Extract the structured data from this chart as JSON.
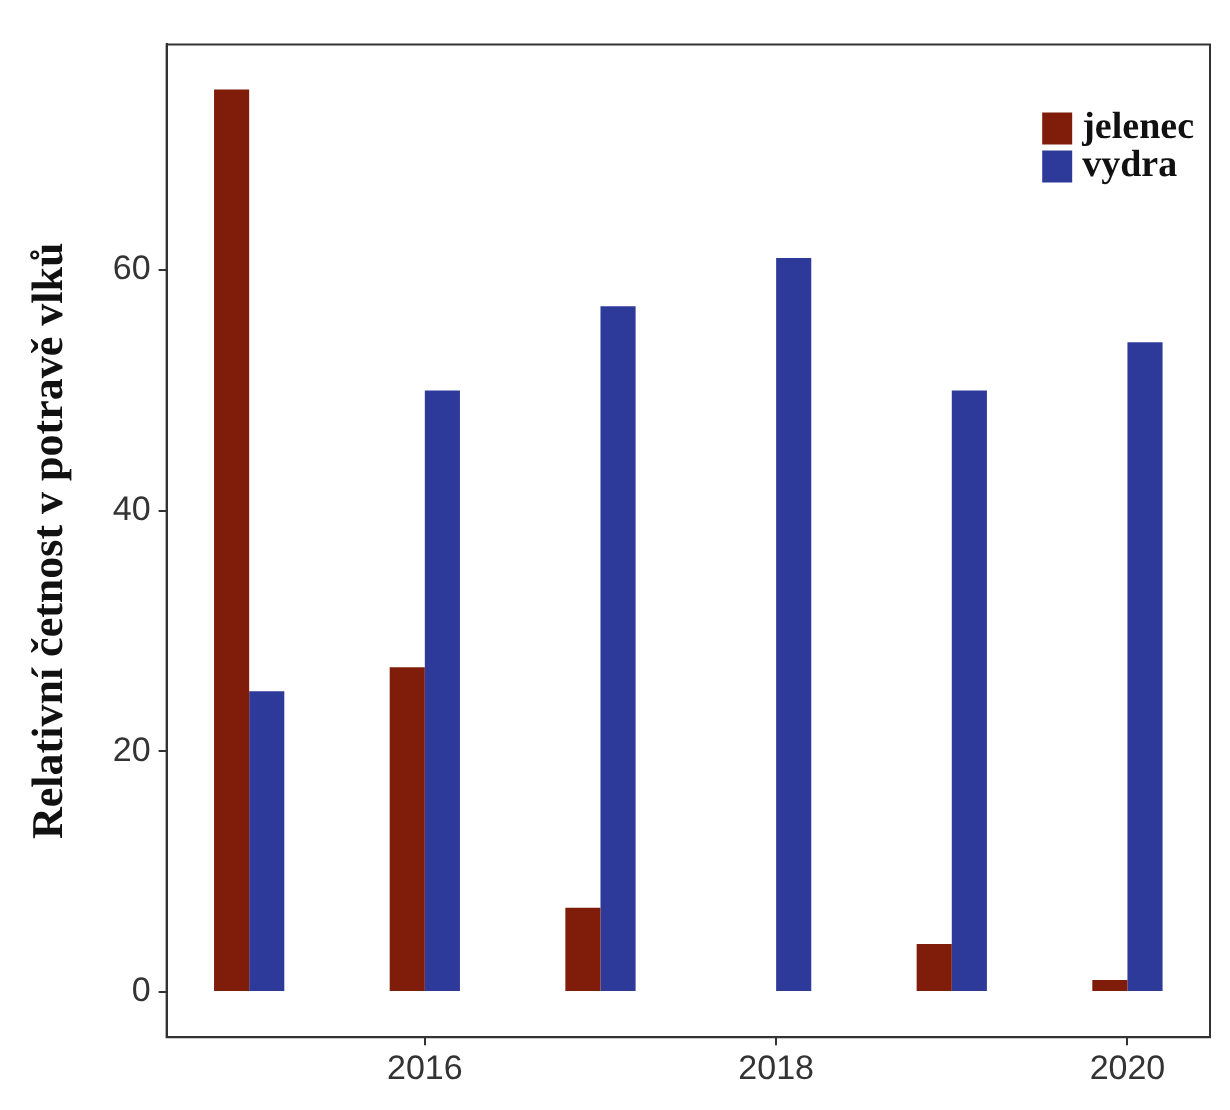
{
  "chart_data": {
    "type": "bar",
    "ylabel": "Relativní četnost v potravě vlků",
    "x": [
      2015,
      2016,
      2017,
      2018,
      2019,
      2020
    ],
    "series": [
      {
        "name": "jelenec",
        "color": "#7f1d0a",
        "values": [
          75,
          27,
          7,
          0,
          4,
          1
        ]
      },
      {
        "name": "vydra",
        "color": "#2e3a9a",
        "values": [
          25,
          50,
          57,
          61,
          50,
          54
        ]
      }
    ],
    "xlim": [
      2014.53,
      2020.47
    ],
    "xticks": [
      2016,
      2018,
      2020
    ],
    "ylim": [
      -3.75,
      78.75
    ],
    "yticks": [
      0,
      20,
      40,
      60
    ],
    "grid": false,
    "legend": "top right"
  }
}
